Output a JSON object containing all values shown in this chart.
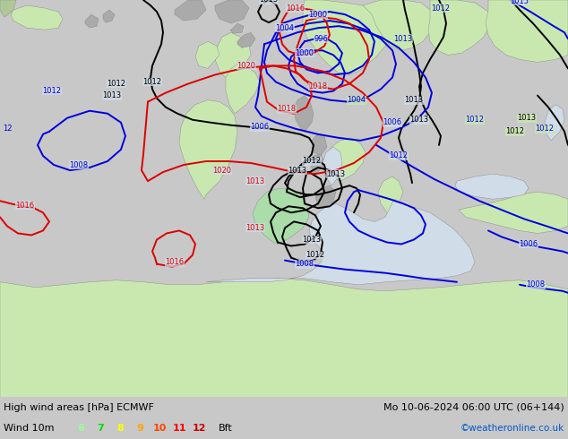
{
  "title_left": "High wind areas [hPa] ECMWF",
  "title_right": "Mo 10-06-2024 06:00 UTC (06+144)",
  "subtitle_left": "Wind 10m",
  "legend_numbers": [
    "6",
    "7",
    "8",
    "9",
    "10",
    "11",
    "12"
  ],
  "legend_colors": [
    "#99ff99",
    "#00dd00",
    "#ffff00",
    "#ffa500",
    "#ff4500",
    "#ff0000",
    "#cc0000"
  ],
  "legend_suffix": "Bft",
  "copyright": "©weatheronline.co.uk",
  "sea_color": "#d0dce8",
  "land_color": "#c8e8b0",
  "gray_color": "#aaaaaa",
  "bottom_color": "#c8c8c8",
  "black_line": "#000000",
  "blue_line": "#0000dd",
  "red_line": "#dd0000",
  "green_area": "#88dd88",
  "line_width": 1.4,
  "label_fontsize": 6.0
}
